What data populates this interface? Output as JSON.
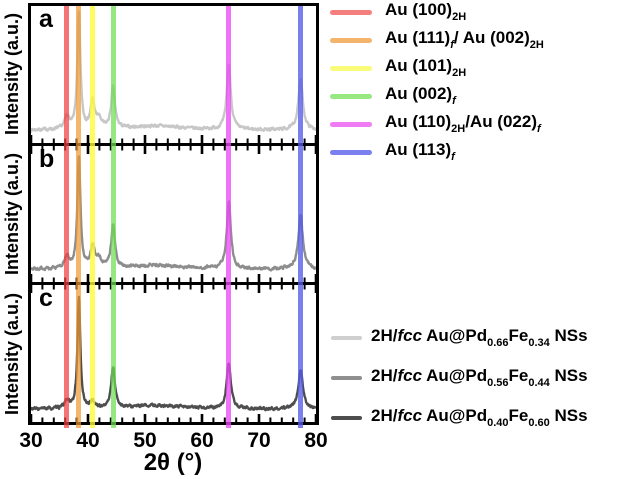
{
  "chart_data": {
    "type": "line",
    "xlabel": "2θ (°)",
    "ylabel": "Intensity (a.u.)",
    "x_range": [
      30,
      80
    ],
    "x_ticks": [
      30,
      40,
      50,
      60,
      70,
      80
    ],
    "x_minor_tick_step": 2,
    "panels": [
      {
        "label": "a",
        "series_name": "2H/fcc Au@Pd0.66Fe0.34 NSs",
        "line_color": "#c7c7c7",
        "baseline": 0.075,
        "hump": {
          "center": 52,
          "width": 5.5,
          "height": 0.032
        },
        "peaks": [
          {
            "two_theta": 36.3,
            "rel_intensity": 0.1,
            "width": 0.45
          },
          {
            "two_theta": 38.4,
            "rel_intensity": 0.88,
            "width": 0.32
          },
          {
            "two_theta": 40.8,
            "rel_intensity": 0.21,
            "width": 0.42
          },
          {
            "two_theta": 41.9,
            "rel_intensity": 0.07,
            "width": 0.55
          },
          {
            "two_theta": 44.4,
            "rel_intensity": 0.31,
            "width": 0.4
          },
          {
            "two_theta": 64.7,
            "rel_intensity": 0.5,
            "width": 0.42
          },
          {
            "two_theta": 77.3,
            "rel_intensity": 0.38,
            "width": 0.48
          }
        ]
      },
      {
        "label": "b",
        "series_name": "2H/fcc Au@Pd0.56Fe0.44 NSs",
        "line_color": "#8d8d8d",
        "baseline": 0.075,
        "hump": {
          "center": 52,
          "width": 5.5,
          "height": 0.03
        },
        "peaks": [
          {
            "two_theta": 36.3,
            "rel_intensity": 0.09,
            "width": 0.45
          },
          {
            "two_theta": 38.4,
            "rel_intensity": 0.86,
            "width": 0.32
          },
          {
            "two_theta": 40.8,
            "rel_intensity": 0.17,
            "width": 0.42
          },
          {
            "two_theta": 41.9,
            "rel_intensity": 0.06,
            "width": 0.55
          },
          {
            "two_theta": 44.4,
            "rel_intensity": 0.32,
            "width": 0.4
          },
          {
            "two_theta": 64.7,
            "rel_intensity": 0.51,
            "width": 0.42
          },
          {
            "two_theta": 77.3,
            "rel_intensity": 0.41,
            "width": 0.48
          }
        ]
      },
      {
        "label": "c",
        "series_name": "2H/fcc Au@Pd0.40Fe0.60 NSs",
        "line_color": "#4e4e4e",
        "baseline": 0.075,
        "hump": {
          "center": 52,
          "width": 5.5,
          "height": 0.028
        },
        "peaks": [
          {
            "two_theta": 36.3,
            "rel_intensity": 0.06,
            "width": 0.45
          },
          {
            "two_theta": 38.4,
            "rel_intensity": 0.84,
            "width": 0.3
          },
          {
            "two_theta": 40.8,
            "rel_intensity": 0.05,
            "width": 0.45
          },
          {
            "two_theta": 44.4,
            "rel_intensity": 0.31,
            "width": 0.4
          },
          {
            "two_theta": 64.7,
            "rel_intensity": 0.35,
            "width": 0.42
          },
          {
            "two_theta": 77.3,
            "rel_intensity": 0.3,
            "width": 0.48
          }
        ]
      }
    ],
    "reference_lines": [
      {
        "two_theta": 36.3,
        "band_color": "rgba(244,62,62,0.72)",
        "swatch_color": "#f57e7e",
        "label": "Au (100)2H",
        "parts": [
          {
            "text": "Au (100)"
          },
          {
            "text": "2H",
            "sub": true
          }
        ]
      },
      {
        "two_theta": 38.4,
        "band_color": "rgba(240,150,45,0.70)",
        "swatch_color": "#f4b46e",
        "label": "Au (111)f / Au (002)2H",
        "parts": [
          {
            "text": "Au (111)"
          },
          {
            "text": "f",
            "sub": true,
            "italic": true
          },
          {
            "text": "/ Au (002)"
          },
          {
            "text": "2H",
            "sub": true
          }
        ]
      },
      {
        "two_theta": 40.8,
        "band_color": "rgba(252,252,50,0.78)",
        "swatch_color": "#fbfb7a",
        "label": "Au (101)2H",
        "parts": [
          {
            "text": "Au (101)"
          },
          {
            "text": "2H",
            "sub": true
          }
        ]
      },
      {
        "two_theta": 44.4,
        "band_color": "rgba(110,222,80,0.72)",
        "swatch_color": "#97e783",
        "label": "Au (002)f",
        "parts": [
          {
            "text": "Au (002)"
          },
          {
            "text": "f",
            "sub": true,
            "italic": true
          }
        ]
      },
      {
        "two_theta": 64.7,
        "band_color": "rgba(235,70,243,0.76)",
        "swatch_color": "#f07cf5",
        "label": "Au (110)2H/Au (022)f",
        "parts": [
          {
            "text": "Au (110)"
          },
          {
            "text": "2H",
            "sub": true
          },
          {
            "text": "/Au (022)"
          },
          {
            "text": "f",
            "sub": true,
            "italic": true
          }
        ]
      },
      {
        "two_theta": 77.3,
        "band_color": "rgba(85,90,235,0.78)",
        "swatch_color": "#7c80ee",
        "label": "Au (113)f",
        "parts": [
          {
            "text": "Au (113)"
          },
          {
            "text": "f",
            "sub": true,
            "italic": true
          }
        ]
      }
    ],
    "sample_legend": [
      {
        "color": "#cfcfcf",
        "label": "2H/fcc Au@Pd0.66Fe0.34 NSs",
        "parts": [
          {
            "text": "2H/"
          },
          {
            "text": "fcc",
            "italic": true
          },
          {
            "text": " Au@Pd"
          },
          {
            "text": "0.66",
            "sub": true
          },
          {
            "text": "Fe"
          },
          {
            "text": "0.34",
            "sub": true
          },
          {
            "text": " NSs"
          }
        ]
      },
      {
        "color": "#8f8f8f",
        "label": "2H/fcc Au@Pd0.56Fe0.44 NSs",
        "parts": [
          {
            "text": "2H/"
          },
          {
            "text": "fcc",
            "italic": true
          },
          {
            "text": " Au@Pd"
          },
          {
            "text": "0.56",
            "sub": true
          },
          {
            "text": "Fe"
          },
          {
            "text": "0.44",
            "sub": true
          },
          {
            "text": " NSs"
          }
        ]
      },
      {
        "color": "#4d4d4d",
        "label": "2H/fcc Au@Pd0.40Fe0.60 NSs",
        "parts": [
          {
            "text": "2H/"
          },
          {
            "text": "fcc",
            "italic": true
          },
          {
            "text": " Au@Pd"
          },
          {
            "text": "0.40",
            "sub": true
          },
          {
            "text": "Fe"
          },
          {
            "text": "0.60",
            "sub": true
          },
          {
            "text": " NSs"
          }
        ]
      }
    ]
  }
}
